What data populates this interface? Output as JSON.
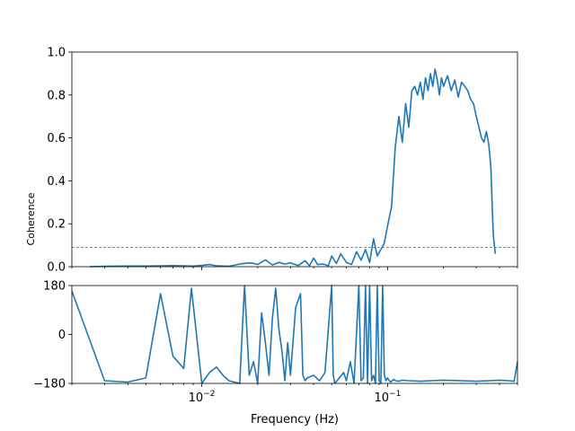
{
  "chart_data": [
    {
      "type": "line",
      "ylabel": "Coherence",
      "ylim": [
        0.0,
        1.0
      ],
      "yticks": [
        "0.0",
        "0.2",
        "0.4",
        "0.6",
        "0.8",
        "1.0"
      ],
      "xscale": "log",
      "xlim": [
        0.002,
        0.5
      ],
      "threshold": 0.09,
      "colors": {
        "series": "#1f77b4",
        "threshold": "#d62728"
      },
      "x": [
        0.0025,
        0.003,
        0.004,
        0.005,
        0.006,
        0.007,
        0.008,
        0.009,
        0.01,
        0.011,
        0.012,
        0.014,
        0.016,
        0.018,
        0.019,
        0.02,
        0.022,
        0.024,
        0.026,
        0.028,
        0.03,
        0.033,
        0.036,
        0.038,
        0.04,
        0.042,
        0.045,
        0.048,
        0.05,
        0.053,
        0.056,
        0.06,
        0.064,
        0.068,
        0.072,
        0.076,
        0.08,
        0.084,
        0.088,
        0.092,
        0.096,
        0.1,
        0.105,
        0.11,
        0.115,
        0.12,
        0.125,
        0.13,
        0.135,
        0.14,
        0.145,
        0.15,
        0.155,
        0.16,
        0.165,
        0.17,
        0.175,
        0.18,
        0.185,
        0.19,
        0.195,
        0.2,
        0.21,
        0.22,
        0.23,
        0.24,
        0.25,
        0.26,
        0.27,
        0.28,
        0.29,
        0.3,
        0.31,
        0.32,
        0.33,
        0.34,
        0.35,
        0.355,
        0.36,
        0.365,
        0.37,
        0.375,
        0.38
      ],
      "y": [
        0.0,
        0.002,
        0.003,
        0.003,
        0.004,
        0.005,
        0.004,
        0.003,
        0.006,
        0.01,
        0.004,
        0.002,
        0.012,
        0.018,
        0.015,
        0.01,
        0.032,
        0.008,
        0.02,
        0.012,
        0.018,
        0.005,
        0.028,
        0.004,
        0.04,
        0.01,
        0.012,
        0.004,
        0.05,
        0.015,
        0.06,
        0.02,
        0.01,
        0.07,
        0.03,
        0.08,
        0.02,
        0.13,
        0.05,
        0.08,
        0.11,
        0.19,
        0.28,
        0.56,
        0.7,
        0.58,
        0.76,
        0.65,
        0.82,
        0.84,
        0.8,
        0.86,
        0.78,
        0.88,
        0.82,
        0.9,
        0.84,
        0.92,
        0.87,
        0.8,
        0.88,
        0.84,
        0.89,
        0.82,
        0.87,
        0.79,
        0.86,
        0.84,
        0.82,
        0.78,
        0.76,
        0.7,
        0.65,
        0.6,
        0.58,
        0.63,
        0.57,
        0.52,
        0.45,
        0.3,
        0.15,
        0.1,
        0.06
      ]
    },
    {
      "type": "line",
      "xlabel": "Frequency (Hz)",
      "ylim": [
        -180,
        180
      ],
      "yticks": [
        "−180",
        "0",
        "180"
      ],
      "xscale": "log",
      "xlim": [
        0.002,
        0.5
      ],
      "xticks": [
        {
          "value": 0.01,
          "label": "10",
          "exp": "−2"
        },
        {
          "value": 0.1,
          "label": "10",
          "exp": "−1"
        }
      ],
      "colors": {
        "series": "#1f77b4"
      },
      "x": [
        0.002,
        0.003,
        0.004,
        0.005,
        0.006,
        0.007,
        0.008,
        0.0088,
        0.01,
        0.011,
        0.012,
        0.013,
        0.014,
        0.016,
        0.017,
        0.018,
        0.019,
        0.02,
        0.021,
        0.022,
        0.023,
        0.024,
        0.025,
        0.026,
        0.027,
        0.028,
        0.029,
        0.03,
        0.032,
        0.034,
        0.035,
        0.036,
        0.037,
        0.04,
        0.043,
        0.046,
        0.05,
        0.051,
        0.052,
        0.055,
        0.058,
        0.06,
        0.063,
        0.066,
        0.07,
        0.072,
        0.074,
        0.076,
        0.078,
        0.08,
        0.082,
        0.084,
        0.086,
        0.088,
        0.09,
        0.092,
        0.094,
        0.096,
        0.098,
        0.1,
        0.102,
        0.104,
        0.106,
        0.108,
        0.11,
        0.115,
        0.12,
        0.13,
        0.15,
        0.17,
        0.2,
        0.25,
        0.3,
        0.35,
        0.4,
        0.45,
        0.48,
        0.5
      ],
      "y": [
        160,
        -170,
        -175,
        -160,
        150,
        -80,
        -125,
        170,
        -180,
        -140,
        -120,
        -150,
        -170,
        -180,
        180,
        -150,
        -100,
        -180,
        80,
        -30,
        -150,
        60,
        170,
        20,
        -60,
        -170,
        -30,
        -150,
        100,
        150,
        -150,
        -170,
        -160,
        -150,
        -170,
        -140,
        180,
        -150,
        -180,
        -160,
        -140,
        -170,
        -100,
        -180,
        180,
        -170,
        -160,
        180,
        -180,
        180,
        -170,
        -150,
        -180,
        180,
        -170,
        -180,
        180,
        -150,
        -170,
        -160,
        -170,
        -175,
        -170,
        -165,
        -170,
        -172,
        -168,
        -170,
        -172,
        -170,
        -168,
        -170,
        -172,
        -170,
        -168,
        -170,
        -172,
        -100
      ]
    }
  ]
}
